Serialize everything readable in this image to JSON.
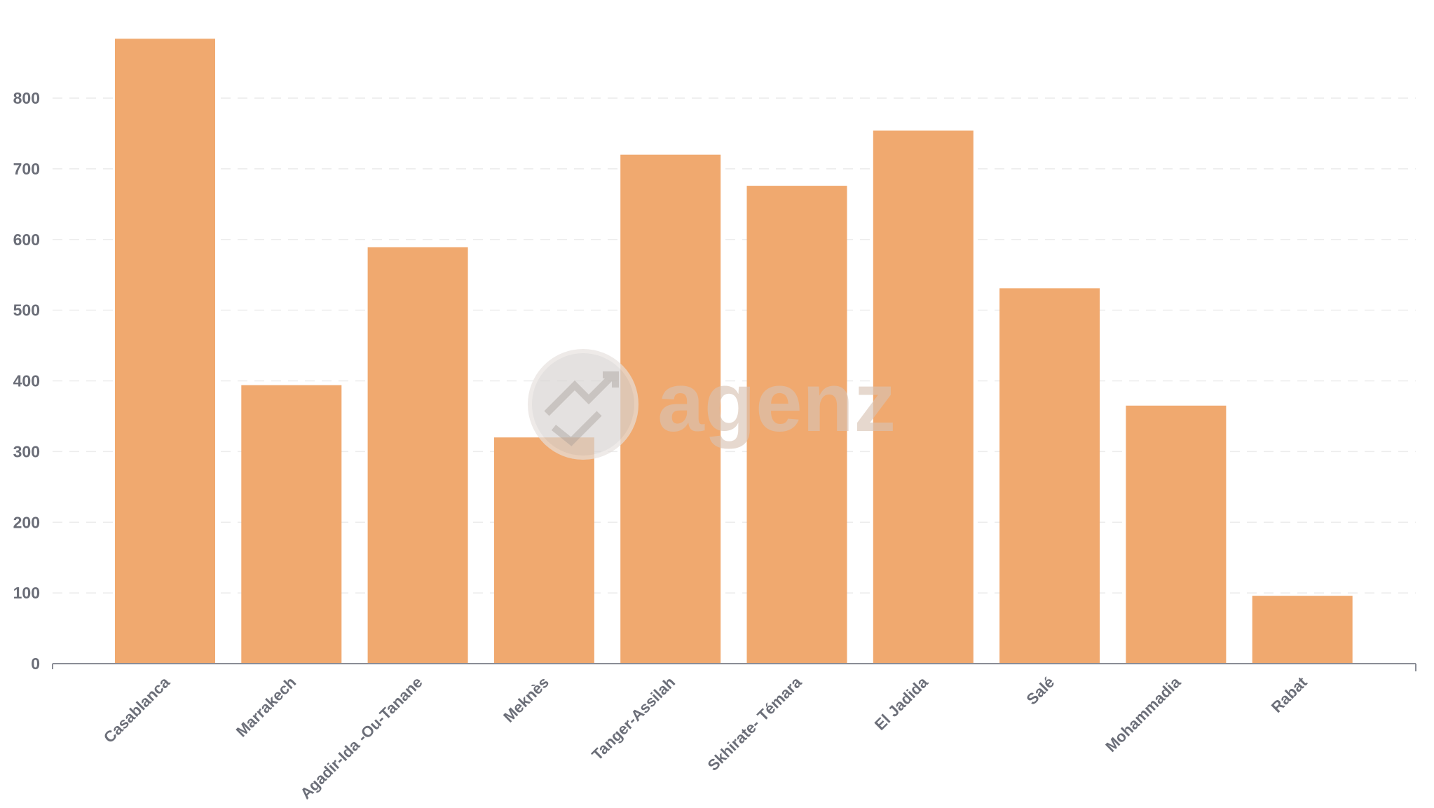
{
  "chart_data": {
    "type": "bar",
    "title": "",
    "xlabel": "",
    "ylabel": "",
    "categories": [
      "Casablanca",
      "Marrakech",
      "Agadir-Ida -Ou-Tanane",
      "Meknès",
      "Tanger-Assilah",
      "Skhirate- Témara",
      "El Jadida",
      "Salé",
      "Mohammadia",
      "Rabat"
    ],
    "values": [
      884,
      394,
      589,
      320,
      720,
      676,
      754,
      531,
      365,
      96
    ],
    "ylim": [
      0,
      900
    ],
    "yticks": [
      "0",
      "100",
      "200",
      "300",
      "400",
      "500",
      "600",
      "700",
      "800"
    ],
    "grid": true,
    "legend": "none",
    "bar_color": "#f0a96f",
    "axis_color": "#8a8d96"
  },
  "watermark": {
    "text": "agenz"
  }
}
